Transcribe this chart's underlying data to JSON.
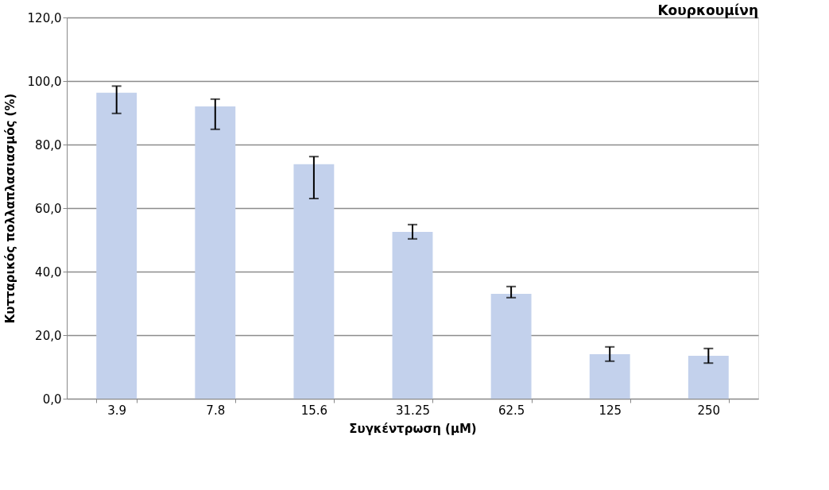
{
  "chart_data": {
    "type": "bar",
    "title": "Κουρκουμίνη",
    "xlabel": "Συγκέντρωση (μM)",
    "ylabel": "Κυτταρικός   πολλαπλασιασμός (%)",
    "categories": [
      "3.9",
      "7.8",
      "15.6",
      "31.25",
      "62.5",
      "125",
      "250"
    ],
    "values": [
      96.3,
      92.0,
      73.8,
      52.5,
      33.0,
      14.0,
      13.5
    ],
    "errors": [
      [
        89.8,
        98.4
      ],
      [
        84.8,
        94.3
      ],
      [
        63.0,
        76.2
      ],
      [
        50.3,
        54.8
      ],
      [
        31.8,
        35.3
      ],
      [
        11.8,
        16.3
      ],
      [
        11.2,
        15.8
      ]
    ],
    "color": "#c3d1ec",
    "ylim": [
      0,
      120
    ],
    "yticks": [
      {
        "value": 0,
        "label": "0,0"
      },
      {
        "value": 20,
        "label": "20,0"
      },
      {
        "value": 40,
        "label": "40,0"
      },
      {
        "value": 60,
        "label": "60,0"
      },
      {
        "value": 80,
        "label": "80,0"
      },
      {
        "value": 100,
        "label": "100,0"
      },
      {
        "value": 120,
        "label": "120,0"
      }
    ],
    "grid": "y"
  }
}
